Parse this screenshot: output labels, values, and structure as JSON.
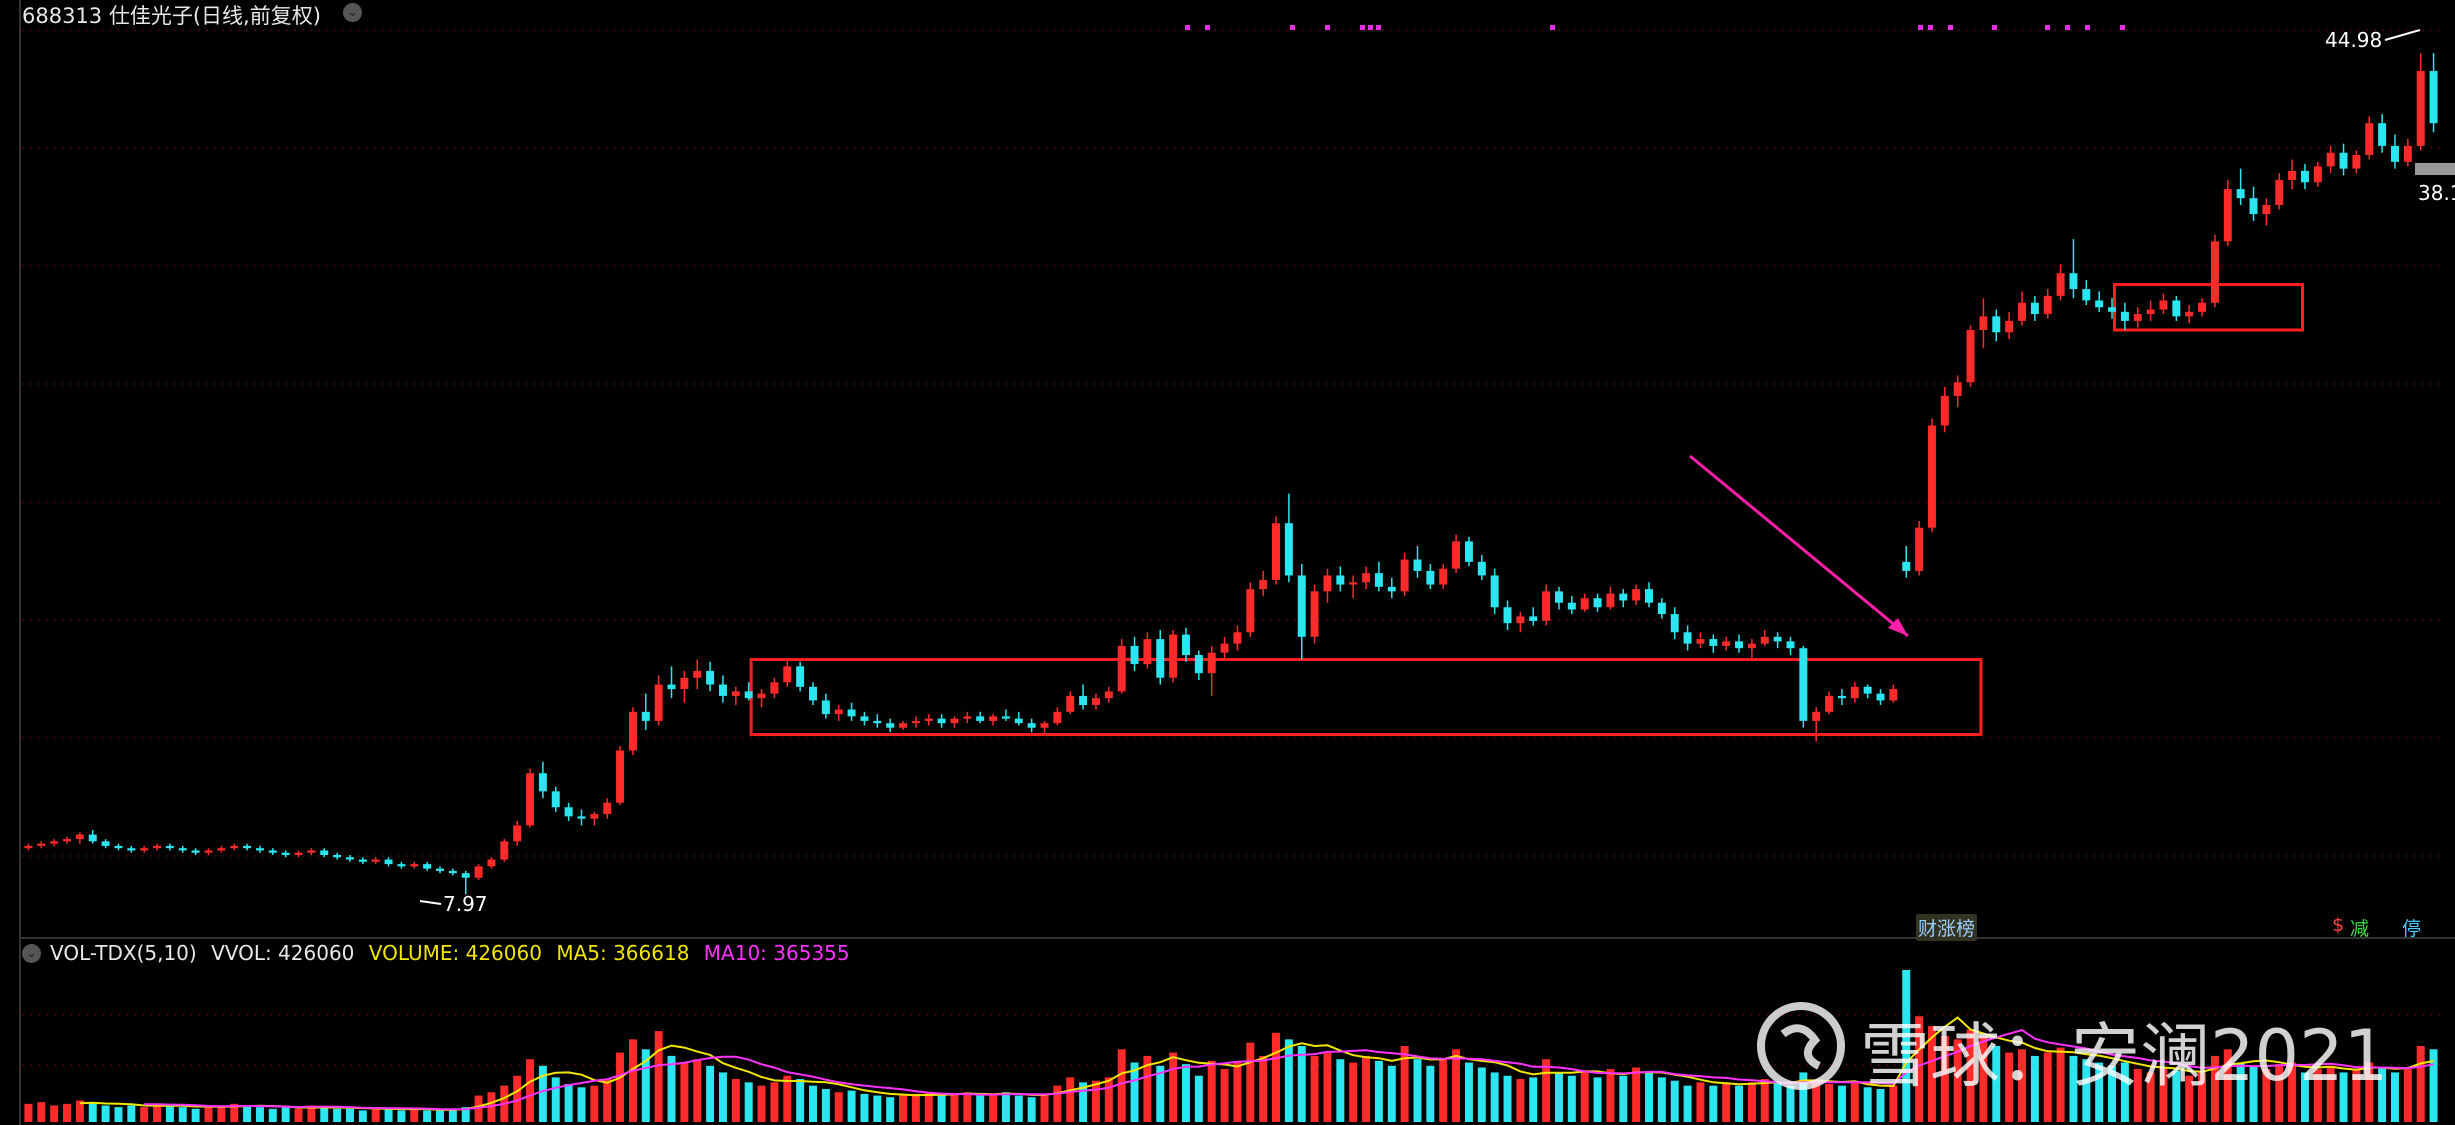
{
  "header": {
    "code": "688313",
    "name": "仕佳光子",
    "period": "(日线,前复权)",
    "title": "688313 仕佳光子(日线,前复权)"
  },
  "volume_legend": {
    "indicator": "VOL-TDX(5,10)",
    "vvol": "VVOL: 426060",
    "volume": "VOLUME: 426060",
    "ma5": "MA5: 366618",
    "ma10": "MA10: 365355"
  },
  "price_labels": {
    "high": "44.98",
    "low": "7.97",
    "right_edge": "38.1"
  },
  "tags": {
    "finance": "财涨榜",
    "jian_a": "$",
    "jian_b": "减",
    "ting": "停"
  },
  "watermark": {
    "text": "雪球：安澜2021"
  },
  "colors": {
    "up": "#ff2a2a",
    "down": "#2be6f0",
    "ma5": "#f2e600",
    "ma10": "#ff33ff",
    "box": "#ff1f1f",
    "arrow": "#ff1fa8",
    "grid": "#7a0000"
  },
  "chart_data": {
    "type": "candlestick",
    "panels": [
      "price",
      "volume"
    ],
    "price_range": [
      7.5,
      46
    ],
    "price_marks": {
      "high": 44.98,
      "low": 7.97
    },
    "candles": [
      [
        10.0,
        10.2,
        9.9,
        10.1
      ],
      [
        10.1,
        10.3,
        10.0,
        10.2
      ],
      [
        10.2,
        10.4,
        10.1,
        10.3
      ],
      [
        10.3,
        10.5,
        10.2,
        10.4
      ],
      [
        10.4,
        10.7,
        10.2,
        10.6
      ],
      [
        10.6,
        10.8,
        10.2,
        10.3
      ],
      [
        10.3,
        10.4,
        10.0,
        10.1
      ],
      [
        10.1,
        10.2,
        9.9,
        10.0
      ],
      [
        10.0,
        10.1,
        9.8,
        9.9
      ],
      [
        9.9,
        10.1,
        9.8,
        10.0
      ],
      [
        10.0,
        10.2,
        9.9,
        10.1
      ],
      [
        10.1,
        10.2,
        9.9,
        10.0
      ],
      [
        10.0,
        10.1,
        9.8,
        9.9
      ],
      [
        9.9,
        10.0,
        9.7,
        9.8
      ],
      [
        9.8,
        10.0,
        9.7,
        9.9
      ],
      [
        9.9,
        10.1,
        9.8,
        10.0
      ],
      [
        10.0,
        10.2,
        9.9,
        10.1
      ],
      [
        10.1,
        10.2,
        9.9,
        10.0
      ],
      [
        10.0,
        10.1,
        9.8,
        9.9
      ],
      [
        9.9,
        10.0,
        9.7,
        9.8
      ],
      [
        9.8,
        9.9,
        9.6,
        9.7
      ],
      [
        9.7,
        9.9,
        9.6,
        9.8
      ],
      [
        9.8,
        10.0,
        9.7,
        9.9
      ],
      [
        9.9,
        10.0,
        9.6,
        9.7
      ],
      [
        9.7,
        9.8,
        9.5,
        9.6
      ],
      [
        9.6,
        9.7,
        9.4,
        9.5
      ],
      [
        9.5,
        9.6,
        9.3,
        9.4
      ],
      [
        9.4,
        9.6,
        9.3,
        9.5
      ],
      [
        9.5,
        9.6,
        9.2,
        9.3
      ],
      [
        9.3,
        9.4,
        9.1,
        9.2
      ],
      [
        9.2,
        9.4,
        9.1,
        9.3
      ],
      [
        9.3,
        9.4,
        9.0,
        9.1
      ],
      [
        9.1,
        9.2,
        8.9,
        9.0
      ],
      [
        9.0,
        9.1,
        8.8,
        8.9
      ],
      [
        8.9,
        9.0,
        7.97,
        8.7
      ],
      [
        8.7,
        9.3,
        8.6,
        9.2
      ],
      [
        9.2,
        9.6,
        9.1,
        9.5
      ],
      [
        9.5,
        10.4,
        9.4,
        10.3
      ],
      [
        10.3,
        11.2,
        10.1,
        11.0
      ],
      [
        11.0,
        13.5,
        10.9,
        13.3
      ],
      [
        13.3,
        13.8,
        12.2,
        12.5
      ],
      [
        12.5,
        12.7,
        11.6,
        11.8
      ],
      [
        11.8,
        12.0,
        11.2,
        11.4
      ],
      [
        11.4,
        11.7,
        11.0,
        11.3
      ],
      [
        11.3,
        11.6,
        11.0,
        11.5
      ],
      [
        11.5,
        12.2,
        11.3,
        12.0
      ],
      [
        12.0,
        14.5,
        11.9,
        14.3
      ],
      [
        14.3,
        16.2,
        14.1,
        16.0
      ],
      [
        16.0,
        16.8,
        15.2,
        15.6
      ],
      [
        15.6,
        17.6,
        15.4,
        17.2
      ],
      [
        17.2,
        18.0,
        16.6,
        17.0
      ],
      [
        17.0,
        17.8,
        16.4,
        17.5
      ],
      [
        17.5,
        18.3,
        17.0,
        17.8
      ],
      [
        17.8,
        18.2,
        16.9,
        17.2
      ],
      [
        17.2,
        17.6,
        16.4,
        16.7
      ],
      [
        16.7,
        17.1,
        16.3,
        16.9
      ],
      [
        16.9,
        17.3,
        16.5,
        16.6
      ],
      [
        16.6,
        17.0,
        16.2,
        16.8
      ],
      [
        16.8,
        17.5,
        16.6,
        17.3
      ],
      [
        17.3,
        18.3,
        17.1,
        18.0
      ],
      [
        18.0,
        18.2,
        16.9,
        17.1
      ],
      [
        17.1,
        17.3,
        16.3,
        16.5
      ],
      [
        16.5,
        16.8,
        15.7,
        15.9
      ],
      [
        15.9,
        16.3,
        15.6,
        16.1
      ],
      [
        16.1,
        16.4,
        15.6,
        15.8
      ],
      [
        15.8,
        16.0,
        15.4,
        15.6
      ],
      [
        15.6,
        15.9,
        15.3,
        15.5
      ],
      [
        15.5,
        15.7,
        15.1,
        15.3
      ],
      [
        15.3,
        15.6,
        15.2,
        15.5
      ],
      [
        15.5,
        15.8,
        15.3,
        15.6
      ],
      [
        15.6,
        15.9,
        15.4,
        15.7
      ],
      [
        15.7,
        15.9,
        15.3,
        15.5
      ],
      [
        15.5,
        15.8,
        15.3,
        15.7
      ],
      [
        15.7,
        16.0,
        15.5,
        15.8
      ],
      [
        15.8,
        16.0,
        15.5,
        15.6
      ],
      [
        15.6,
        15.9,
        15.4,
        15.8
      ],
      [
        15.8,
        16.1,
        15.6,
        15.7
      ],
      [
        15.7,
        16.0,
        15.4,
        15.5
      ],
      [
        15.5,
        15.7,
        15.1,
        15.3
      ],
      [
        15.3,
        15.6,
        15.0,
        15.5
      ],
      [
        15.5,
        16.2,
        15.4,
        16.0
      ],
      [
        16.0,
        16.9,
        15.9,
        16.7
      ],
      [
        16.7,
        17.2,
        16.1,
        16.3
      ],
      [
        16.3,
        16.8,
        16.1,
        16.6
      ],
      [
        16.6,
        17.1,
        16.4,
        16.9
      ],
      [
        16.9,
        19.2,
        16.8,
        18.9
      ],
      [
        18.9,
        19.3,
        17.8,
        18.1
      ],
      [
        18.1,
        19.5,
        17.9,
        19.2
      ],
      [
        19.2,
        19.6,
        17.2,
        17.5
      ],
      [
        17.5,
        19.6,
        17.3,
        19.4
      ],
      [
        19.4,
        19.7,
        18.2,
        18.5
      ],
      [
        18.5,
        18.7,
        17.4,
        17.7
      ],
      [
        17.7,
        18.9,
        16.7,
        18.6
      ],
      [
        18.6,
        19.3,
        18.3,
        19.0
      ],
      [
        19.0,
        19.8,
        18.7,
        19.5
      ],
      [
        19.5,
        21.7,
        19.3,
        21.4
      ],
      [
        21.4,
        22.2,
        21.1,
        21.8
      ],
      [
        21.8,
        24.6,
        21.6,
        24.3
      ],
      [
        24.3,
        25.6,
        21.7,
        22.0
      ],
      [
        22.0,
        22.5,
        18.3,
        19.3
      ],
      [
        19.3,
        21.6,
        19.0,
        21.3
      ],
      [
        21.3,
        22.3,
        20.8,
        22.0
      ],
      [
        22.0,
        22.4,
        21.3,
        21.6
      ],
      [
        21.6,
        22.0,
        21.0,
        21.7
      ],
      [
        21.7,
        22.4,
        21.4,
        22.1
      ],
      [
        22.1,
        22.6,
        21.3,
        21.5
      ],
      [
        21.5,
        21.9,
        21.0,
        21.3
      ],
      [
        21.3,
        23.0,
        21.1,
        22.7
      ],
      [
        22.7,
        23.3,
        21.9,
        22.2
      ],
      [
        22.2,
        22.5,
        21.4,
        21.6
      ],
      [
        21.6,
        22.5,
        21.4,
        22.3
      ],
      [
        22.3,
        23.8,
        22.1,
        23.5
      ],
      [
        23.5,
        23.7,
        22.4,
        22.6
      ],
      [
        22.6,
        22.9,
        21.8,
        22.0
      ],
      [
        22.0,
        22.3,
        20.3,
        20.6
      ],
      [
        20.6,
        20.9,
        19.6,
        19.9
      ],
      [
        19.9,
        20.4,
        19.5,
        20.2
      ],
      [
        20.2,
        20.6,
        19.8,
        20.0
      ],
      [
        20.0,
        21.6,
        19.8,
        21.3
      ],
      [
        21.3,
        21.5,
        20.5,
        20.8
      ],
      [
        20.8,
        21.1,
        20.3,
        20.5
      ],
      [
        20.5,
        21.2,
        20.4,
        21.0
      ],
      [
        21.0,
        21.2,
        20.4,
        20.6
      ],
      [
        20.6,
        21.5,
        20.5,
        21.2
      ],
      [
        21.2,
        21.4,
        20.6,
        20.9
      ],
      [
        20.9,
        21.6,
        20.7,
        21.4
      ],
      [
        21.4,
        21.7,
        20.6,
        20.8
      ],
      [
        20.8,
        21.0,
        20.1,
        20.3
      ],
      [
        20.3,
        20.6,
        19.2,
        19.5
      ],
      [
        19.5,
        19.8,
        18.7,
        19.0
      ],
      [
        19.0,
        19.5,
        18.8,
        19.2
      ],
      [
        19.2,
        19.4,
        18.6,
        18.9
      ],
      [
        18.9,
        19.3,
        18.7,
        19.1
      ],
      [
        19.1,
        19.4,
        18.6,
        18.8
      ],
      [
        18.8,
        19.2,
        18.3,
        19.0
      ],
      [
        19.0,
        19.6,
        18.9,
        19.3
      ],
      [
        19.3,
        19.5,
        18.8,
        19.1
      ],
      [
        19.1,
        19.3,
        18.5,
        18.8
      ],
      [
        18.8,
        18.9,
        15.3,
        15.6
      ],
      [
        15.6,
        16.2,
        14.7,
        16.0
      ],
      [
        16.0,
        16.9,
        15.9,
        16.7
      ],
      [
        16.7,
        17.0,
        16.3,
        16.6
      ],
      [
        16.6,
        17.3,
        16.4,
        17.1
      ],
      [
        17.1,
        17.2,
        16.6,
        16.8
      ],
      [
        16.8,
        17.0,
        16.3,
        16.5
      ],
      [
        16.5,
        17.2,
        16.4,
        17.0
      ],
      [
        22.6,
        23.3,
        21.9,
        22.2
      ],
      [
        22.2,
        24.4,
        22.0,
        24.1
      ],
      [
        24.1,
        28.9,
        23.9,
        28.6
      ],
      [
        28.6,
        30.3,
        28.3,
        29.9
      ],
      [
        29.9,
        30.8,
        29.4,
        30.5
      ],
      [
        30.5,
        33.0,
        30.3,
        32.8
      ],
      [
        32.8,
        34.2,
        32.0,
        33.4
      ],
      [
        33.4,
        33.7,
        32.3,
        32.7
      ],
      [
        32.7,
        33.6,
        32.4,
        33.2
      ],
      [
        33.2,
        34.5,
        33.0,
        34.0
      ],
      [
        34.0,
        34.3,
        33.2,
        33.5
      ],
      [
        33.5,
        34.6,
        33.3,
        34.3
      ],
      [
        34.3,
        35.7,
        34.1,
        35.3
      ],
      [
        35.3,
        36.8,
        34.2,
        34.6
      ],
      [
        34.6,
        35.0,
        33.9,
        34.1
      ],
      [
        34.1,
        34.5,
        33.6,
        33.8
      ],
      [
        33.8,
        34.2,
        33.3,
        33.6
      ],
      [
        33.6,
        34.0,
        32.8,
        33.2
      ],
      [
        33.2,
        33.8,
        32.9,
        33.5
      ],
      [
        33.5,
        34.1,
        33.2,
        33.7
      ],
      [
        33.7,
        34.4,
        33.5,
        34.1
      ],
      [
        34.1,
        34.3,
        33.2,
        33.4
      ],
      [
        33.4,
        33.9,
        33.1,
        33.6
      ],
      [
        33.6,
        34.2,
        33.4,
        34.0
      ],
      [
        34.0,
        37.0,
        33.8,
        36.7
      ],
      [
        36.7,
        39.4,
        36.5,
        39.0
      ],
      [
        39.0,
        39.9,
        38.3,
        38.6
      ],
      [
        38.6,
        39.1,
        37.6,
        37.9
      ],
      [
        37.9,
        38.6,
        37.4,
        38.3
      ],
      [
        38.3,
        39.7,
        38.1,
        39.4
      ],
      [
        39.4,
        40.3,
        39.0,
        39.8
      ],
      [
        39.8,
        40.1,
        39.0,
        39.3
      ],
      [
        39.3,
        40.2,
        39.1,
        40.0
      ],
      [
        40.0,
        40.9,
        39.7,
        40.6
      ],
      [
        40.6,
        41.0,
        39.6,
        39.9
      ],
      [
        39.9,
        40.7,
        39.7,
        40.5
      ],
      [
        40.5,
        42.2,
        40.3,
        41.9
      ],
      [
        41.9,
        42.3,
        40.6,
        40.9
      ],
      [
        40.9,
        41.4,
        39.9,
        40.2
      ],
      [
        40.2,
        41.2,
        40.0,
        40.9
      ],
      [
        40.9,
        44.98,
        40.7,
        44.2
      ],
      [
        44.2,
        44.98,
        41.5,
        41.9
      ]
    ],
    "volume": [
      11,
      12,
      10,
      11,
      13,
      12,
      10,
      9,
      10,
      9,
      11,
      10,
      9,
      8,
      9,
      10,
      11,
      10,
      9,
      8,
      9,
      8,
      10,
      9,
      8,
      8,
      7,
      9,
      8,
      7,
      8,
      7,
      7,
      8,
      9,
      16,
      18,
      22,
      28,
      38,
      34,
      27,
      23,
      21,
      22,
      26,
      42,
      50,
      44,
      55,
      40,
      36,
      38,
      34,
      30,
      26,
      24,
      22,
      24,
      28,
      26,
      22,
      20,
      18,
      19,
      17,
      16,
      15,
      16,
      17,
      18,
      16,
      17,
      18,
      16,
      17,
      18,
      16,
      15,
      16,
      22,
      27,
      24,
      25,
      27,
      44,
      36,
      40,
      34,
      42,
      35,
      28,
      37,
      32,
      36,
      48,
      40,
      54,
      50,
      46,
      40,
      42,
      38,
      36,
      40,
      37,
      34,
      46,
      38,
      34,
      38,
      44,
      36,
      33,
      30,
      28,
      26,
      27,
      38,
      30,
      28,
      30,
      27,
      32,
      28,
      33,
      30,
      27,
      25,
      22,
      24,
      22,
      24,
      22,
      24,
      26,
      24,
      22,
      30,
      24,
      23,
      22,
      24,
      21,
      20,
      22,
      92,
      64,
      58,
      52,
      50,
      56,
      52,
      46,
      42,
      44,
      40,
      42,
      45,
      40,
      38,
      36,
      34,
      36,
      32,
      30,
      33,
      31,
      28,
      30,
      40,
      44,
      36,
      34,
      32,
      35,
      36,
      30,
      32,
      34,
      30,
      32,
      36,
      33,
      30,
      32,
      46,
      44
    ],
    "vol_range": [
      0,
      95
    ],
    "boxes": [
      {
        "from_index": 57,
        "to_index": 151,
        "top": 18.3,
        "bottom": 15.0
      },
      {
        "from_index": 163,
        "to_index": 176,
        "top": 34.8,
        "bottom": 32.8
      }
    ]
  }
}
